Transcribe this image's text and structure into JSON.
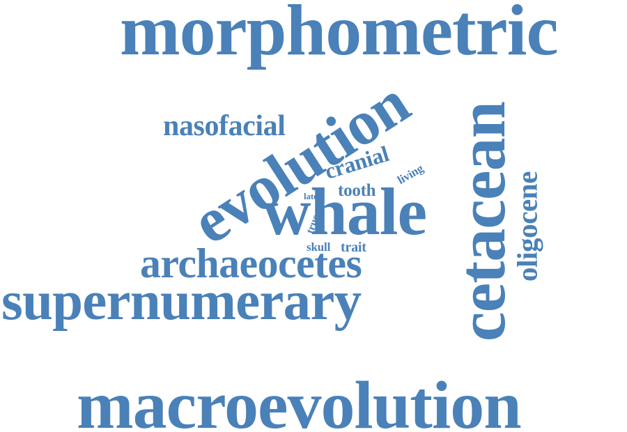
{
  "style": {
    "word_color": "#4a81b8",
    "background": "#ffffff"
  },
  "words": {
    "morphometric": "morphometric",
    "macroevolution": "macroevolution",
    "supernumerary": "supernumerary",
    "archaeocetes": "archaeocetes",
    "whale": "whale",
    "evolution": "evolution",
    "cetacean": "cetacean",
    "nasofacial": "nasofacial",
    "oligocene": "oligocene",
    "cranial": "cranial",
    "tooth": "tooth",
    "living": "living",
    "late": "late",
    "true": "true",
    "skull": "skull",
    "trait": "trait"
  }
}
